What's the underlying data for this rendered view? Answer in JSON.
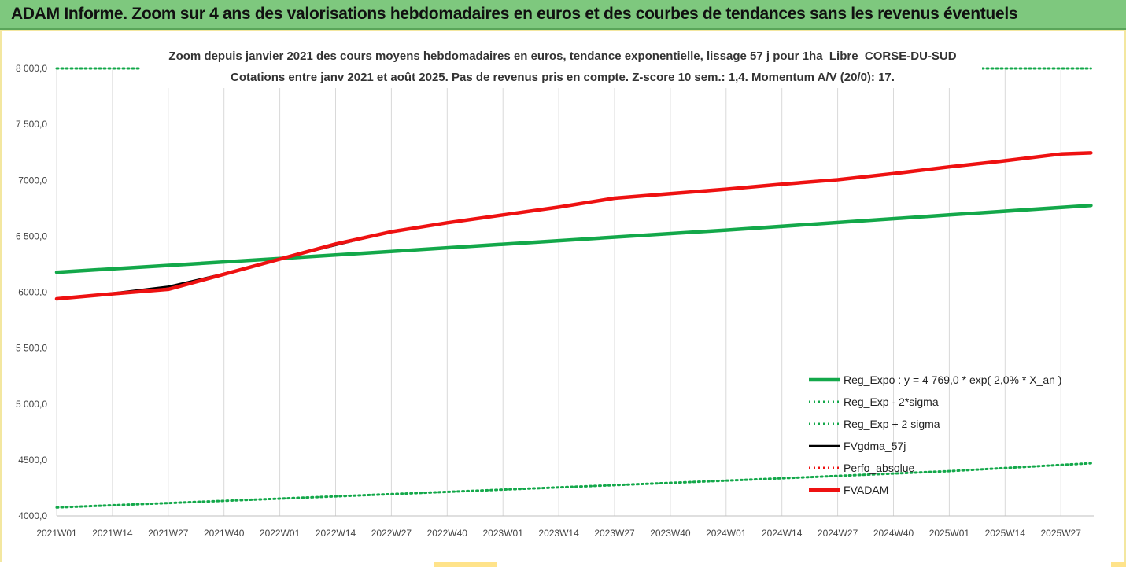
{
  "banner_title": "ADAM Informe. Zoom sur 4 ans des valorisations hebdomadaires en euros et des courbes de tendances sans les revenus éventuels",
  "colors": {
    "green": "#13a84a",
    "black": "#000000",
    "red": "#ee1111",
    "banner": "#7ec87e"
  },
  "chart_data": {
    "type": "line",
    "title": "Zoom depuis janvier 2021 des cours moyens hebdomadaires en euros, tendance exponentielle, lissage 57 j pour 1ha_Libre_CORSE-DU-SUD",
    "subtitle": "Cotations entre janv 2021 et août 2025. Pas de revenus pris en compte. Z-score 10 sem.: 1,4. Momentum A/V (20/0): 17.",
    "ylim": [
      4000,
      8000
    ],
    "yticks": [
      "4000,0",
      "4500,0",
      "5 000,0",
      "5 500,0",
      "6000,0",
      "6 500,0",
      "7000,0",
      "7 500,0",
      "8 000,0"
    ],
    "ytick_values": [
      4000,
      4500,
      5000,
      5500,
      6000,
      6500,
      7000,
      7500,
      8000
    ],
    "xtick_labels": [
      "2021W01",
      "2021W14",
      "2021W27",
      "2021W40",
      "2022W01",
      "2022W14",
      "2022W27",
      "2022W40",
      "2023W01",
      "2023W14",
      "2023W27",
      "2023W40",
      "2024W01",
      "2024W14",
      "2024W27",
      "2024W40",
      "2025W01",
      "2025W14",
      "2025W27"
    ],
    "grid": "vertical",
    "legend_position": "bottom-right",
    "series": [
      {
        "name": "Reg_Expo : y = 4 769,0 * exp( 2,0% *  X_an )",
        "style": "solid-thick",
        "color": "#13a84a",
        "points": [
          [
            "2021W01",
            6178
          ],
          [
            "2022W01",
            6300
          ],
          [
            "2023W01",
            6428
          ],
          [
            "2024W01",
            6555
          ],
          [
            "2025W01",
            6690
          ],
          [
            "2025W34",
            6775
          ]
        ]
      },
      {
        "name": "Reg_Exp - 2*sigma",
        "style": "dotted",
        "color": "#13a84a",
        "points": [
          [
            "2021W01",
            4075
          ],
          [
            "2022W01",
            4155
          ],
          [
            "2023W01",
            4235
          ],
          [
            "2024W01",
            4315
          ],
          [
            "2025W01",
            4400
          ],
          [
            "2025W34",
            4470
          ]
        ]
      },
      {
        "name": "Reg_Exp + 2 sigma",
        "style": "dotted",
        "color": "#13a84a",
        "points": [
          [
            "2021W01",
            8000
          ],
          [
            "2025W34",
            8000
          ]
        ]
      },
      {
        "name": "FVgdma_57j",
        "style": "solid",
        "color": "#000000",
        "points": [
          [
            "2021W01",
            5940
          ],
          [
            "2021W14",
            5990
          ],
          [
            "2021W27",
            6050
          ],
          [
            "2021W40",
            6165
          ],
          [
            "2022W01",
            6295
          ],
          [
            "2022W14",
            6420
          ],
          [
            "2022W27",
            6540
          ],
          [
            "2022W40",
            6620
          ],
          [
            "2023W01",
            6690
          ],
          [
            "2023W14",
            6760
          ],
          [
            "2023W27",
            6840
          ],
          [
            "2023W40",
            6880
          ],
          [
            "2024W01",
            6920
          ],
          [
            "2024W14",
            6965
          ],
          [
            "2024W27",
            7005
          ],
          [
            "2024W40",
            7060
          ],
          [
            "2025W01",
            7120
          ],
          [
            "2025W14",
            7175
          ],
          [
            "2025W27",
            7235
          ],
          [
            "2025W34",
            7245
          ]
        ]
      },
      {
        "name": "Perfo_absolue",
        "style": "dotted",
        "color": "#ee1111",
        "points": []
      },
      {
        "name": "FVADAM",
        "style": "solid-thick",
        "color": "#ee1111",
        "points": [
          [
            "2021W01",
            5940
          ],
          [
            "2021W14",
            5985
          ],
          [
            "2021W27",
            6025
          ],
          [
            "2021W40",
            6160
          ],
          [
            "2022W01",
            6295
          ],
          [
            "2022W14",
            6430
          ],
          [
            "2022W27",
            6540
          ],
          [
            "2022W40",
            6620
          ],
          [
            "2023W01",
            6690
          ],
          [
            "2023W14",
            6760
          ],
          [
            "2023W27",
            6840
          ],
          [
            "2023W40",
            6880
          ],
          [
            "2024W01",
            6920
          ],
          [
            "2024W14",
            6965
          ],
          [
            "2024W27",
            7005
          ],
          [
            "2024W40",
            7060
          ],
          [
            "2025W01",
            7120
          ],
          [
            "2025W14",
            7175
          ],
          [
            "2025W27",
            7235
          ],
          [
            "2025W34",
            7245
          ]
        ]
      }
    ]
  }
}
